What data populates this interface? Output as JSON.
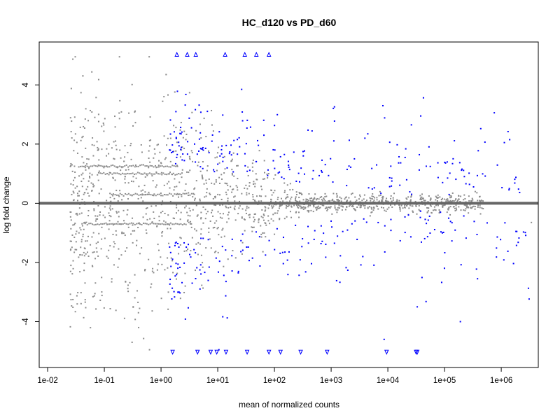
{
  "chart_data": {
    "type": "scatter",
    "title": "HC_d120 vs PD_d60",
    "xlabel": "mean of normalized counts",
    "ylabel": "log fold change",
    "x_scale": "log10",
    "xlim": [
      0.0071,
      4500000
    ],
    "ylim": [
      -5.55,
      5.45
    ],
    "x_ticks": [
      0.01,
      0.1,
      1,
      10,
      100,
      1000,
      10000,
      100000,
      1000000
    ],
    "x_tick_labels": [
      "1e-02",
      "1e-01",
      "1e+00",
      "1e+01",
      "1e+02",
      "1e+03",
      "1e+04",
      "1e+05",
      "1e+06"
    ],
    "y_ticks": [
      -4,
      -2,
      0,
      2,
      4
    ],
    "y_tick_labels": [
      "-4",
      "-2",
      "0",
      "2",
      "4"
    ],
    "reference_line": 0,
    "colors": {
      "nonsignificant": "#8c8c8c",
      "significant": "#0000ff",
      "reference_line": "#666666"
    },
    "series": [
      {
        "group": "nonsignificant",
        "marker": "dot",
        "generated_sample": {
          "count": 1500,
          "x_log10_range": [
            -1.6,
            5.7
          ]
        }
      },
      {
        "group": "significant",
        "marker": "dot",
        "generated_sample": {
          "count": 400,
          "x_log10_range": [
            0.15,
            6.5
          ]
        }
      },
      {
        "group": "out-of-range-high",
        "marker": "triangle-up",
        "x": [
          1.9,
          2.9,
          4.1,
          13.5,
          30,
          48,
          80
        ],
        "y": [
          5,
          5,
          5,
          5,
          5,
          5,
          5
        ]
      },
      {
        "group": "out-of-range-low",
        "marker": "triangle-down",
        "x": [
          1.6,
          4.4,
          7.5,
          9.6,
          14,
          33,
          80,
          128,
          290,
          850,
          9500,
          31500,
          33000
        ],
        "y": [
          -5,
          -5,
          -5,
          -5,
          -5,
          -5,
          -5,
          -5,
          -5,
          -5,
          -5,
          -5,
          -5
        ]
      },
      {
        "group": "outliers",
        "marker": "dot",
        "x": [
          3400000,
          260000,
          190000,
          155000,
          50000,
          38000,
          33000,
          26000,
          8600
        ],
        "y": [
          -0.65,
          -0.15,
          -4.0,
          -0.25,
          -0.3,
          2.95,
          -3.5,
          2.65,
          -4.6
        ]
      }
    ]
  }
}
